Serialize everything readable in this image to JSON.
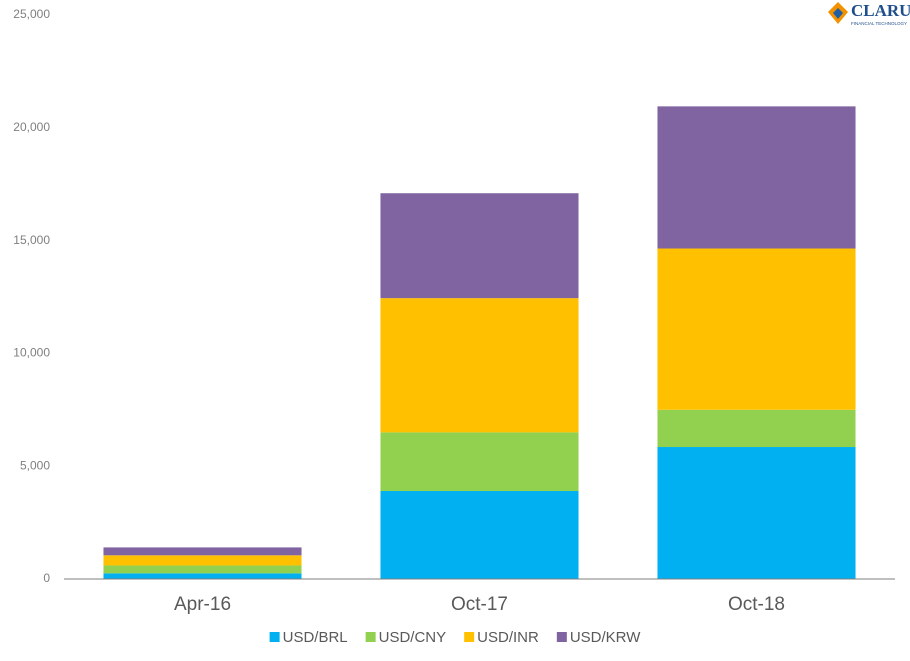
{
  "logo": {
    "name": "CLARUS",
    "tagline": "FINANCIAL TECHNOLOGY"
  },
  "chart_data": {
    "type": "stacked_bar",
    "categories": [
      "Apr-16",
      "Oct-17",
      "Oct-18"
    ],
    "series": [
      {
        "name": "USD/BRL",
        "color": "#00b0f0",
        "values": [
          250,
          3900,
          5850
        ]
      },
      {
        "name": "USD/CNY",
        "color": "#92d050",
        "values": [
          350,
          2600,
          1650
        ]
      },
      {
        "name": "USD/INR",
        "color": "#ffc000",
        "values": [
          450,
          5950,
          7150
        ]
      },
      {
        "name": "USD/KRW",
        "color": "#8064a2",
        "values": [
          350,
          4650,
          6300
        ]
      }
    ],
    "ylim": [
      0,
      25000
    ],
    "yticks": [
      0,
      {
        "value": 5000,
        "label": "5,000"
      },
      {
        "value": 10000,
        "label": "10,000"
      },
      {
        "value": 15000,
        "label": "15,000"
      },
      {
        "value": 20000,
        "label": "20,000"
      },
      {
        "value": 25000,
        "label": "25,000"
      }
    ],
    "grid": false,
    "legend": "bottom"
  }
}
